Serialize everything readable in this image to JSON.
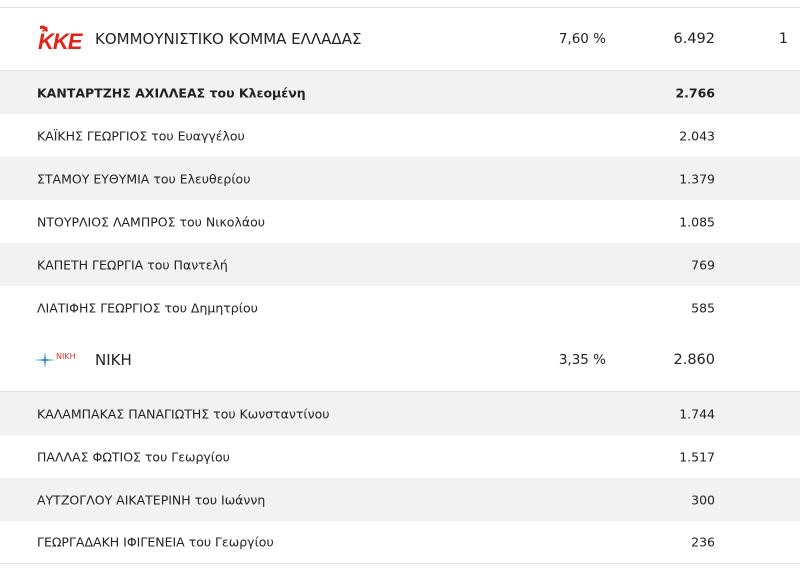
{
  "parties": [
    {
      "logo_text": "KKE",
      "name": "ΚΟΜΜΟΥΝΙΣΤΙΚΟ ΚΟΜΜΑ ΕΛΛΑΔΑΣ",
      "percent": "7,60 %",
      "votes": "6.492",
      "seats": "1",
      "candidates": [
        {
          "name": "ΚΑΝΤΑΡΤΖΗΣ ΑΧΙΛΛΕΑΣ του Κλεομένη",
          "votes": "2.766",
          "elected": true
        },
        {
          "name": "ΚΑΪΚΗΣ ΓΕΩΡΓΙΟΣ του Ευαγγέλου",
          "votes": "2.043"
        },
        {
          "name": "ΣΤΑΜΟΥ ΕΥΘΥΜΙΑ του Ελευθερίου",
          "votes": "1.379"
        },
        {
          "name": "ΝΤΟΥΡΛΙΟΣ ΛΑΜΠΡΟΣ του Νικολάου",
          "votes": "1.085"
        },
        {
          "name": "ΚΑΠΕΤΗ ΓΕΩΡΓΙΑ του Παντελή",
          "votes": "769"
        },
        {
          "name": "ΛΙΑΤΙΦΗΣ ΓΕΩΡΓΙΟΣ του Δημητρίου",
          "votes": "585"
        }
      ]
    },
    {
      "logo_text": "ΝΙΚΗ",
      "name": "ΝΙΚΗ",
      "percent": "3,35 %",
      "votes": "2.860",
      "candidates": [
        {
          "name": "ΚΑΛΑΜΠΑΚΑΣ ΠΑΝΑΓΙΩΤΗΣ του Κωνσταντίνου",
          "votes": "1.744"
        },
        {
          "name": "ΠΑΛΛΑΣ ΦΩΤΙΟΣ του Γεωργίου",
          "votes": "1.517"
        },
        {
          "name": "ΑΥΤΖΟΓΛΟΥ ΑΙΚΑΤΕΡΙΝΗ του Ιωάννη",
          "votes": "300"
        },
        {
          "name": "ΓΕΩΡΓΑΔΑΚΗ ΙΦΙΓΕΝΕΙΑ του Γεωργίου",
          "votes": "236"
        }
      ]
    }
  ]
}
